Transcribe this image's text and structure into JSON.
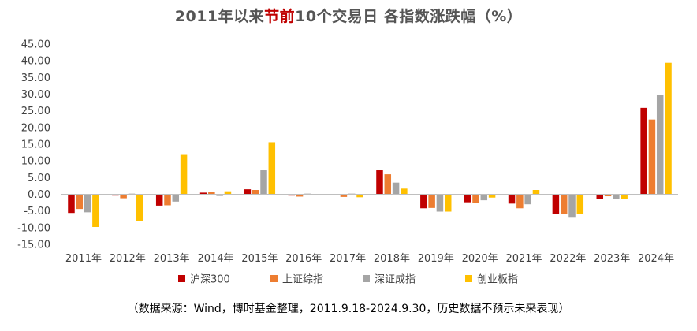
{
  "title": {
    "part1": "2011年以来",
    "highlight": "节前",
    "part2": "10个交易日 各指数涨跌幅（%）"
  },
  "source_note": "（数据来源：Wind，博时基金整理，2011.9.18-2024.9.30，历史数据不预示未来表现）",
  "chart_data": {
    "type": "bar",
    "title": "2011年以来节前10个交易日 各指数涨跌幅（%）",
    "categories": [
      "2011年",
      "2012年",
      "2013年",
      "2014年",
      "2015年",
      "2016年",
      "2017年",
      "2018年",
      "2019年",
      "2020年",
      "2021年",
      "2022年",
      "2023年",
      "2024年"
    ],
    "ylim": [
      -15,
      45
    ],
    "yticks": [
      "45.00",
      "40.00",
      "35.00",
      "30.00",
      "25.00",
      "20.00",
      "15.00",
      "10.00",
      "5.00",
      "0.00",
      "-5.00",
      "-10.00",
      "-15.00"
    ],
    "grid": false,
    "legend_position": "bottom",
    "series": [
      {
        "name": "沪深300",
        "color": "#c00000",
        "values": [
          -5.6,
          -0.4,
          -3.4,
          0.5,
          1.5,
          -0.4,
          -0.2,
          7.2,
          -4.2,
          -2.4,
          -2.8,
          -5.9,
          -1.3,
          25.9
        ]
      },
      {
        "name": "上证综指",
        "color": "#ed7d31",
        "values": [
          -4.4,
          -1.2,
          -3.3,
          0.8,
          1.3,
          -0.7,
          -0.8,
          6.0,
          -4.1,
          -2.5,
          -4.2,
          -5.8,
          -0.6,
          22.4
        ]
      },
      {
        "name": "深证成指",
        "color": "#a5a5a5",
        "values": [
          -5.4,
          0.2,
          -2.2,
          -0.5,
          7.2,
          0.2,
          0.2,
          3.5,
          -5.2,
          -1.8,
          -3.0,
          -6.8,
          -1.5,
          29.7
        ]
      },
      {
        "name": "创业板指",
        "color": "#ffc000",
        "values": [
          -9.8,
          -8.0,
          11.8,
          0.9,
          15.6,
          0.0,
          -0.9,
          1.7,
          -5.2,
          -1.0,
          1.3,
          -5.9,
          -1.4,
          39.4
        ]
      }
    ]
  }
}
